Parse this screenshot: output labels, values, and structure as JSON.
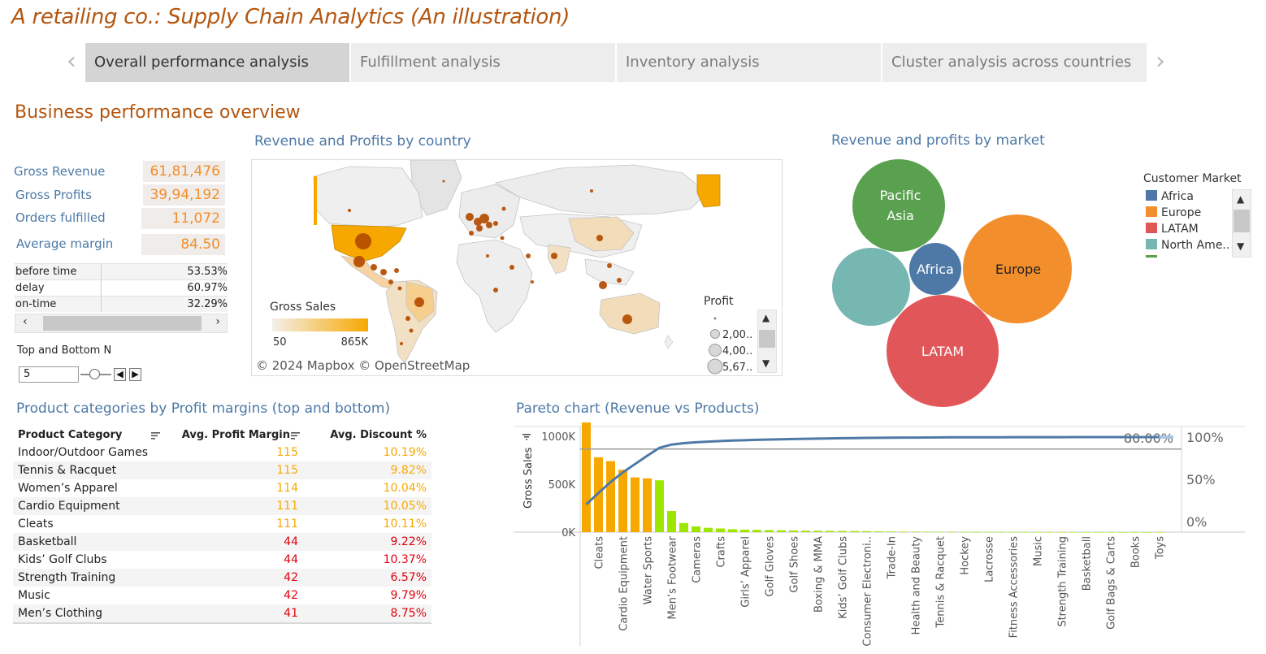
{
  "app": {
    "title": "A retailing co.: Supply Chain Analytics (An illustration)"
  },
  "tabs": [
    {
      "label": "Overall performance analysis",
      "active": true
    },
    {
      "label": "Fulfillment analysis",
      "active": false
    },
    {
      "label": "Inventory analysis",
      "active": false
    },
    {
      "label": "Cluster analysis across countries",
      "active": false
    }
  ],
  "section_title": "Business performance overview",
  "kpis": [
    {
      "label": "Gross Revenue",
      "value": "61,81,476"
    },
    {
      "label": "Gross Profits",
      "value": "39,94,192"
    },
    {
      "label": "Orders fulfilled",
      "value": "11,072"
    },
    {
      "label": "Average margin",
      "value": "84.50"
    }
  ],
  "delivery": [
    {
      "label": "before time",
      "value": "53.53%"
    },
    {
      "label": "delay",
      "value": "60.97%"
    },
    {
      "label": "on-time",
      "value": "32.29%"
    }
  ],
  "topn": {
    "label": "Top and Bottom N",
    "value": "5"
  },
  "map": {
    "title": "Revenue and Profits by country",
    "color_legend_title": "Gross Sales",
    "color_min": "50",
    "color_max": "865K",
    "size_legend_title": "Profit",
    "size_items": [
      "2,00..",
      "4,00..",
      "5,67.."
    ],
    "credit": "© 2024 Mapbox © OpenStreetMap"
  },
  "markets": {
    "title": "Revenue and profits by market",
    "legend_title": "Customer Market",
    "bubbles": [
      {
        "label_lines": [
          "Pacific",
          "Asia"
        ],
        "color": "#59a14f"
      },
      {
        "label_lines": [
          ""
        ],
        "color": "#76b7b2"
      },
      {
        "label_lines": [
          "Africa"
        ],
        "color": "#4e79a7"
      },
      {
        "label_lines": [
          "Europe"
        ],
        "color": "#f28e2b"
      },
      {
        "label_lines": [
          "LATAM"
        ],
        "color": "#e15759"
      }
    ],
    "legend": [
      {
        "label": "Africa",
        "color": "#4e79a7"
      },
      {
        "label": "Europe",
        "color": "#f28e2b"
      },
      {
        "label": "LATAM",
        "color": "#e15759"
      },
      {
        "label": "North Ame..",
        "color": "#76b7b2"
      }
    ]
  },
  "categories": {
    "title": "Product categories by Profit margins (top and bottom)",
    "headers": [
      "Product Category",
      "Avg. Profit Margin",
      "Avg. Discount %"
    ],
    "rows": [
      {
        "name": "Indoor/Outdoor Games",
        "margin": "115",
        "discount": "10.19%",
        "tier": "top"
      },
      {
        "name": "Tennis & Racquet",
        "margin": "115",
        "discount": "9.82%",
        "tier": "top"
      },
      {
        "name": "Women’s Apparel",
        "margin": "114",
        "discount": "10.04%",
        "tier": "top"
      },
      {
        "name": "Cardio Equipment",
        "margin": "111",
        "discount": "10.05%",
        "tier": "top"
      },
      {
        "name": "Cleats",
        "margin": "111",
        "discount": "10.11%",
        "tier": "top"
      },
      {
        "name": "Basketball",
        "margin": "44",
        "discount": "9.22%",
        "tier": "bottom"
      },
      {
        "name": "Kids’ Golf Clubs",
        "margin": "44",
        "discount": "10.37%",
        "tier": "bottom"
      },
      {
        "name": "Strength Training",
        "margin": "42",
        "discount": "6.57%",
        "tier": "bottom"
      },
      {
        "name": "Music",
        "margin": "42",
        "discount": "9.79%",
        "tier": "bottom"
      },
      {
        "name": "Men’s Clothing",
        "margin": "41",
        "discount": "8.75%",
        "tier": "bottom"
      }
    ],
    "colors": {
      "top": "#f7a800",
      "bottom": "#e0000b"
    }
  },
  "pareto": {
    "title": "Pareto chart (Revenue vs Products)",
    "threshold_label": "80.00%"
  },
  "chart_data": {
    "type": "bar",
    "ylabel": "Gross Sales",
    "y_ticks": [
      "0K",
      "500K",
      "1000K"
    ],
    "y2_ticks": [
      "0%",
      "50%",
      "100%"
    ],
    "ylim": [
      0,
      1100000
    ],
    "threshold": 0.8,
    "categories": [
      "",
      "Cleats",
      "",
      "Cardio Equipment",
      "",
      "Water Sports",
      "",
      "Men’s Footwear",
      "",
      "Cameras",
      "",
      "Crafts",
      "",
      "Girls’ Apparel",
      "",
      "Golf Gloves",
      "",
      "Golf Shoes",
      "",
      "Boxing & MMA",
      "",
      "Kids’ Golf Clubs",
      "",
      "Consumer Electroni..",
      "",
      "Trade-In",
      "",
      "Health and Beauty",
      "",
      "Tennis & Racquet",
      "",
      "Hockey",
      "",
      "Lacrosse",
      "",
      "Fitness Accessories",
      "",
      "Music",
      "",
      "Strength Training",
      "",
      "Basketball",
      "",
      "Golf Bags & Carts",
      "",
      "Books",
      "",
      "Toys"
    ],
    "values": [
      1160000,
      780000,
      740000,
      650000,
      570000,
      560000,
      540000,
      220000,
      95000,
      60000,
      45000,
      38000,
      30000,
      26000,
      24000,
      21000,
      19000,
      17000,
      15000,
      14000,
      13000,
      12000,
      11000,
      10000,
      8000,
      7000,
      6000,
      5000,
      4500,
      4000,
      3500,
      3000,
      2600,
      2200,
      1900,
      1600,
      1300,
      1100,
      900,
      800,
      700,
      600,
      500,
      400,
      300,
      200,
      150,
      100
    ],
    "bar_colors": [
      "#f7a800",
      "#f7a800",
      "#f7a800",
      "#f7a800",
      "#f7a800",
      "#f7a800",
      "#9ee600",
      "#9ee600",
      "#9ee600",
      "#9ee600",
      "#9ee600",
      "#9ee600",
      "#9ee600",
      "#9ee600",
      "#9ee600",
      "#9ee600",
      "#9ee600",
      "#9ee600",
      "#9ee600",
      "#9ee600",
      "#9ee600",
      "#9ee600",
      "#9ee600",
      "#9ee600",
      "#9ee600",
      "#9ee600",
      "#9ee600",
      "#9ee600",
      "#9ee600",
      "#9ee600",
      "#9ee600",
      "#9ee600",
      "#9ee600",
      "#9ee600",
      "#9ee600",
      "#9ee600",
      "#9ee600",
      "#9ee600",
      "#9ee600",
      "#9ee600",
      "#9ee600",
      "#9ee600",
      "#9ee600",
      "#9ee600",
      "#9ee600",
      "#9ee600",
      "#9ee600",
      "#9ee600"
    ],
    "cumulative_color": "#4e79a7"
  }
}
